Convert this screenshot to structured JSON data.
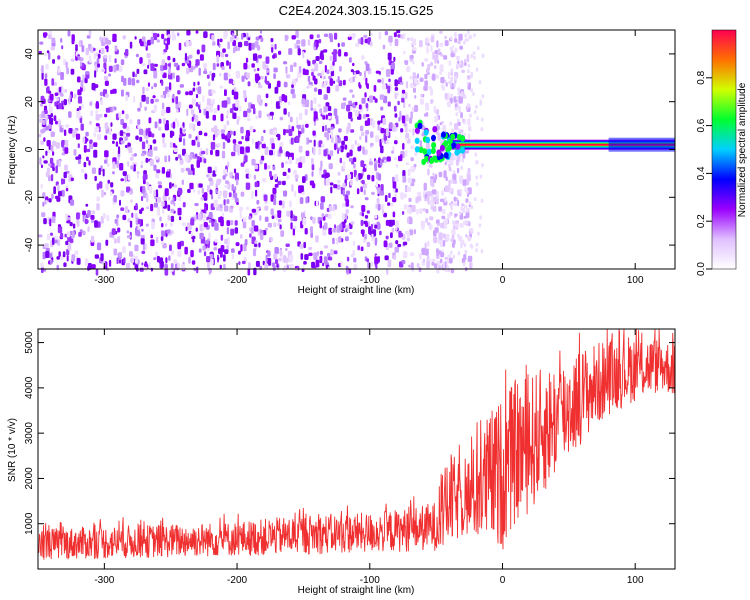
{
  "figure_title": "C2E4.2024.303.15.15.G25",
  "chart_data": [
    {
      "type": "heatmap",
      "title": "C2E4.2024.303.15.15.G25",
      "xlabel": "Height of straight line (km)",
      "ylabel": "Frequency (Hz)",
      "xlim": [
        -350,
        130
      ],
      "ylim": [
        -50,
        50
      ],
      "x_ticks": [
        -300,
        -200,
        -100,
        0,
        100
      ],
      "y_ticks": [
        -40,
        -20,
        0,
        20,
        40
      ],
      "colorbar": {
        "label": "Normalized spectral amplitude",
        "range": [
          0,
          1
        ],
        "ticks": [
          "0.0",
          "0.2",
          "0.4",
          "0.6",
          "0.8"
        ],
        "colormap": [
          "#ffffff",
          "#e0c0ff",
          "#9a00ff",
          "#0000ff",
          "#00d0ff",
          "#00ff30",
          "#d0ff00",
          "#ff7000",
          "#ff0050"
        ]
      },
      "noise_region": {
        "x_range": [
          -350,
          -40
        ],
        "y_range": [
          -50,
          50
        ],
        "typical_amplitude": 0.15
      },
      "signal_line": {
        "x_range": [
          -40,
          130
        ],
        "frequency_hz": 2,
        "amplitude": 0.92,
        "onset_x": -65,
        "onset_spread_hz": 10
      }
    },
    {
      "type": "line",
      "xlabel": "Height of straight line (km)",
      "ylabel": "SNR (10 * v/v)",
      "xlim": [
        -350,
        130
      ],
      "ylim": [
        0,
        5300
      ],
      "x_ticks": [
        -300,
        -200,
        -100,
        0,
        100
      ],
      "y_ticks": [
        1000,
        2000,
        3000,
        4000,
        5000
      ],
      "line_color": "#f03030",
      "envelope": {
        "x": [
          -350,
          -300,
          -250,
          -200,
          -150,
          -100,
          -70,
          -50,
          -40,
          -30,
          -20,
          -10,
          0,
          10,
          20,
          40,
          60,
          80,
          100,
          120,
          130
        ],
        "low": [
          200,
          220,
          250,
          280,
          320,
          350,
          380,
          400,
          450,
          700,
          600,
          500,
          400,
          1000,
          1200,
          2000,
          2800,
          3400,
          3700,
          3900,
          3800
        ],
        "high": [
          900,
          950,
          1000,
          1050,
          1200,
          1250,
          1350,
          1500,
          2600,
          2300,
          2800,
          3500,
          3800,
          4200,
          4300,
          4600,
          4900,
          5100,
          5200,
          5100,
          5000
        ]
      }
    }
  ]
}
